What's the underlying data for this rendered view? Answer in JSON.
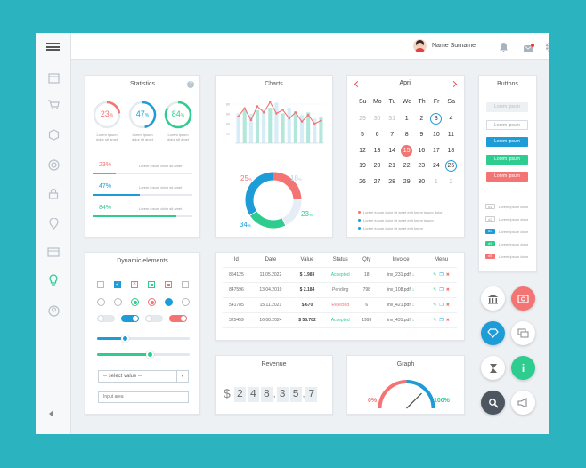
{
  "topbar": {
    "user_name": "Name Surname"
  },
  "statistics": {
    "title": "Statistics",
    "rings": [
      {
        "value": "23",
        "unit": "%",
        "pct": 23,
        "color": "#f47373",
        "lines": [
          "Lorem ipsum",
          "dolor sit amet"
        ]
      },
      {
        "value": "47",
        "unit": "%",
        "pct": 47,
        "color": "#1e9cd7",
        "lines": [
          "Lorem ipsum",
          "dolor sit amet"
        ]
      },
      {
        "value": "84",
        "unit": "%",
        "pct": 84,
        "color": "#2ecc8f",
        "lines": [
          "Lorem ipsum",
          "dolor sit amet"
        ]
      }
    ],
    "bars": [
      {
        "label": "23%",
        "pct": 23,
        "color": "#f47373",
        "text": "Lorem ipsum dolor sit amet"
      },
      {
        "label": "47%",
        "pct": 47,
        "color": "#1e9cd7",
        "text": "Lorem ipsum dolor sit amet"
      },
      {
        "label": "84%",
        "pct": 84,
        "color": "#2ecc8f",
        "text": "Lorem ipsum dolor sit amet"
      }
    ]
  },
  "charts": {
    "title": "Charts",
    "y_ticks": [
      "80",
      "60",
      "40",
      "20"
    ],
    "donut": [
      {
        "value": "25",
        "unit": "%",
        "pct": 25,
        "color": "#f47373"
      },
      {
        "value": "18",
        "unit": "%",
        "pct": 18,
        "color": "#e4eef4"
      },
      {
        "value": "23",
        "unit": "%",
        "pct": 23,
        "color": "#2ecc8f"
      },
      {
        "value": "34",
        "unit": "%",
        "pct": 34,
        "color": "#1e9cd7"
      }
    ]
  },
  "chart_data": {
    "type": "bar",
    "categories": [
      "",
      "",
      "",
      "",
      "",
      "",
      "",
      "",
      "",
      "",
      "",
      "",
      "",
      ""
    ],
    "series": [
      {
        "values": [
          52,
          68,
          45,
          72,
          60,
          80,
          58,
          65,
          48,
          60,
          42,
          55,
          38,
          44
        ]
      },
      {
        "values": [
          58,
          66,
          57,
          64,
          66,
          69,
          79,
          58,
          69,
          62,
          55,
          60,
          48,
          50
        ]
      }
    ],
    "ylim": [
      0,
      90
    ]
  },
  "calendar": {
    "month": "April",
    "weekdays": [
      "Su",
      "Mo",
      "Tu",
      "We",
      "Th",
      "Fr",
      "Sa"
    ],
    "weeks": [
      [
        {
          "d": "",
          "m": 0
        },
        {
          "d": "",
          "m": 0
        },
        {
          "d": "",
          "m": 0
        },
        {
          "d": "",
          "m": 0
        },
        {
          "d": "",
          "m": 0
        },
        {
          "d": "",
          "m": 0
        },
        {
          "d": "",
          "m": 0
        }
      ],
      [
        {
          "d": "29",
          "m": 1
        },
        {
          "d": "30",
          "m": 1
        },
        {
          "d": "31",
          "m": 1
        },
        {
          "d": "1",
          "m": 0
        },
        {
          "d": "2",
          "m": 0
        },
        {
          "d": "3",
          "m": 2
        },
        {
          "d": "4",
          "m": 0
        }
      ],
      [
        {
          "d": "5",
          "m": 0
        },
        {
          "d": "6",
          "m": 0
        },
        {
          "d": "7",
          "m": 0
        },
        {
          "d": "8",
          "m": 0
        },
        {
          "d": "9",
          "m": 0
        },
        {
          "d": "10",
          "m": 0
        },
        {
          "d": "11",
          "m": 0
        }
      ],
      [
        {
          "d": "12",
          "m": 0
        },
        {
          "d": "13",
          "m": 0
        },
        {
          "d": "14",
          "m": 0
        },
        {
          "d": "15",
          "m": 3
        },
        {
          "d": "16",
          "m": 0
        },
        {
          "d": "17",
          "m": 0
        },
        {
          "d": "18",
          "m": 0
        }
      ],
      [
        {
          "d": "19",
          "m": 0
        },
        {
          "d": "20",
          "m": 0
        },
        {
          "d": "21",
          "m": 0
        },
        {
          "d": "22",
          "m": 0
        },
        {
          "d": "23",
          "m": 0
        },
        {
          "d": "24",
          "m": 0
        },
        {
          "d": "25",
          "m": 2
        }
      ],
      [
        {
          "d": "26",
          "m": 0
        },
        {
          "d": "27",
          "m": 0
        },
        {
          "d": "28",
          "m": 0
        },
        {
          "d": "29",
          "m": 0
        },
        {
          "d": "30",
          "m": 0
        },
        {
          "d": "1",
          "m": 1
        },
        {
          "d": "2",
          "m": 1
        }
      ]
    ],
    "notes": [
      {
        "color": "#f47373",
        "text": "Lorem ipsum dolor sit amet enit lorem ipsum dolor"
      },
      {
        "color": "#1e9cd7",
        "text": "Lorem ipsum dolor sit amet enit lorem ipsum"
      },
      {
        "color": "#1e9cd7",
        "text": "Lorem ipsum dolor sit amet enit lorem"
      }
    ]
  },
  "buttons": {
    "title": "Buttons",
    "items": [
      {
        "label": "Lorem ipsum",
        "style": "ghost"
      },
      {
        "label": "Lorem ipsum",
        "style": "outline"
      },
      {
        "label": "Lorem ipsum",
        "style": "blue"
      },
      {
        "label": "Lorem ipsum",
        "style": "green"
      },
      {
        "label": "Lorem ipsum",
        "style": "red"
      }
    ],
    "tags": [
      {
        "badge": "#1",
        "text": "Lorem ipsum dolor",
        "color": "#fff"
      },
      {
        "badge": "#2",
        "text": "Lorem ipsum dolor",
        "color": "#fff"
      },
      {
        "badge": "#3",
        "text": "Lorem ipsum dolor",
        "color": "#1e9cd7"
      },
      {
        "badge": "#4",
        "text": "Lorem ipsum dolor",
        "color": "#2ecc8f"
      },
      {
        "badge": "#5",
        "text": "Lorem ipsum dolor",
        "color": "#f47373"
      }
    ]
  },
  "dynamic": {
    "title": "Dynamic elements",
    "select_value": "-- select value --",
    "input_area": "Input area"
  },
  "table": {
    "headers": [
      "Id",
      "Date",
      "Value",
      "Status",
      "Qty",
      "Invoice",
      "Menu"
    ],
    "rows": [
      {
        "id": "854125",
        "date": "11.05.2022",
        "value": "$ 1.983",
        "status": "Accepted",
        "status_color": "#2ecc8f",
        "qty": "18",
        "invoice": "inv_231.pdf"
      },
      {
        "id": "847596",
        "date": "13.04.2019",
        "value": "$ 2.184",
        "status": "Pending",
        "status_color": "#777777",
        "qty": "798",
        "invoice": "inv_108.pdf"
      },
      {
        "id": "541785",
        "date": "15.11.2021",
        "value": "$ 670",
        "status": "Rejected",
        "status_color": "#f47373",
        "qty": "6",
        "invoice": "inv_421.pdf"
      },
      {
        "id": "325459",
        "date": "16.08.2024",
        "value": "$ 58.782",
        "status": "Accepted",
        "status_color": "#2ecc8f",
        "qty": "1993",
        "invoice": "inv_431.pdf"
      }
    ]
  },
  "revenue": {
    "title": "Revenue",
    "currency": "$",
    "digits": [
      "2",
      "4",
      "8",
      "3",
      "5",
      "7"
    ],
    "separators": [
      ",",
      ","
    ]
  },
  "graph": {
    "title": "Graph",
    "min_label": "0%",
    "max_label": "100%",
    "value_pct": 75
  }
}
